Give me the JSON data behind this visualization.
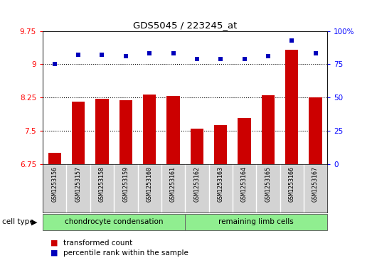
{
  "title": "GDS5045 / 223245_at",
  "samples": [
    "GSM1253156",
    "GSM1253157",
    "GSM1253158",
    "GSM1253159",
    "GSM1253160",
    "GSM1253161",
    "GSM1253162",
    "GSM1253163",
    "GSM1253164",
    "GSM1253165",
    "GSM1253166",
    "GSM1253167"
  ],
  "transformed_count": [
    7.0,
    8.15,
    8.22,
    8.18,
    8.32,
    8.28,
    7.55,
    7.62,
    7.78,
    8.3,
    9.32,
    8.25
  ],
  "percentile_rank": [
    75,
    82,
    82,
    81,
    83,
    83,
    79,
    79,
    79,
    81,
    93,
    83
  ],
  "group1_label": "chondrocyte condensation",
  "group2_label": "remaining limb cells",
  "group1_count": 6,
  "group2_count": 6,
  "ylim_left": [
    6.75,
    9.75
  ],
  "ylim_right": [
    0,
    100
  ],
  "yticks_left": [
    6.75,
    7.5,
    8.25,
    9.0,
    9.75
  ],
  "yticks_right": [
    0,
    25,
    50,
    75,
    100
  ],
  "ytick_labels_left": [
    "6.75",
    "7.5",
    "8.25",
    "9",
    "9.75"
  ],
  "ytick_labels_right": [
    "0",
    "25",
    "50",
    "75",
    "100%"
  ],
  "bar_color": "#cc0000",
  "dot_color": "#0000bb",
  "group_color": "#90EE90",
  "sample_bg_color": "#d3d3d3",
  "legend_tc": "transformed count",
  "legend_pr": "percentile rank within the sample",
  "dotted_lines": [
    7.5,
    8.25,
    9.0
  ],
  "bar_bottom": 6.75
}
